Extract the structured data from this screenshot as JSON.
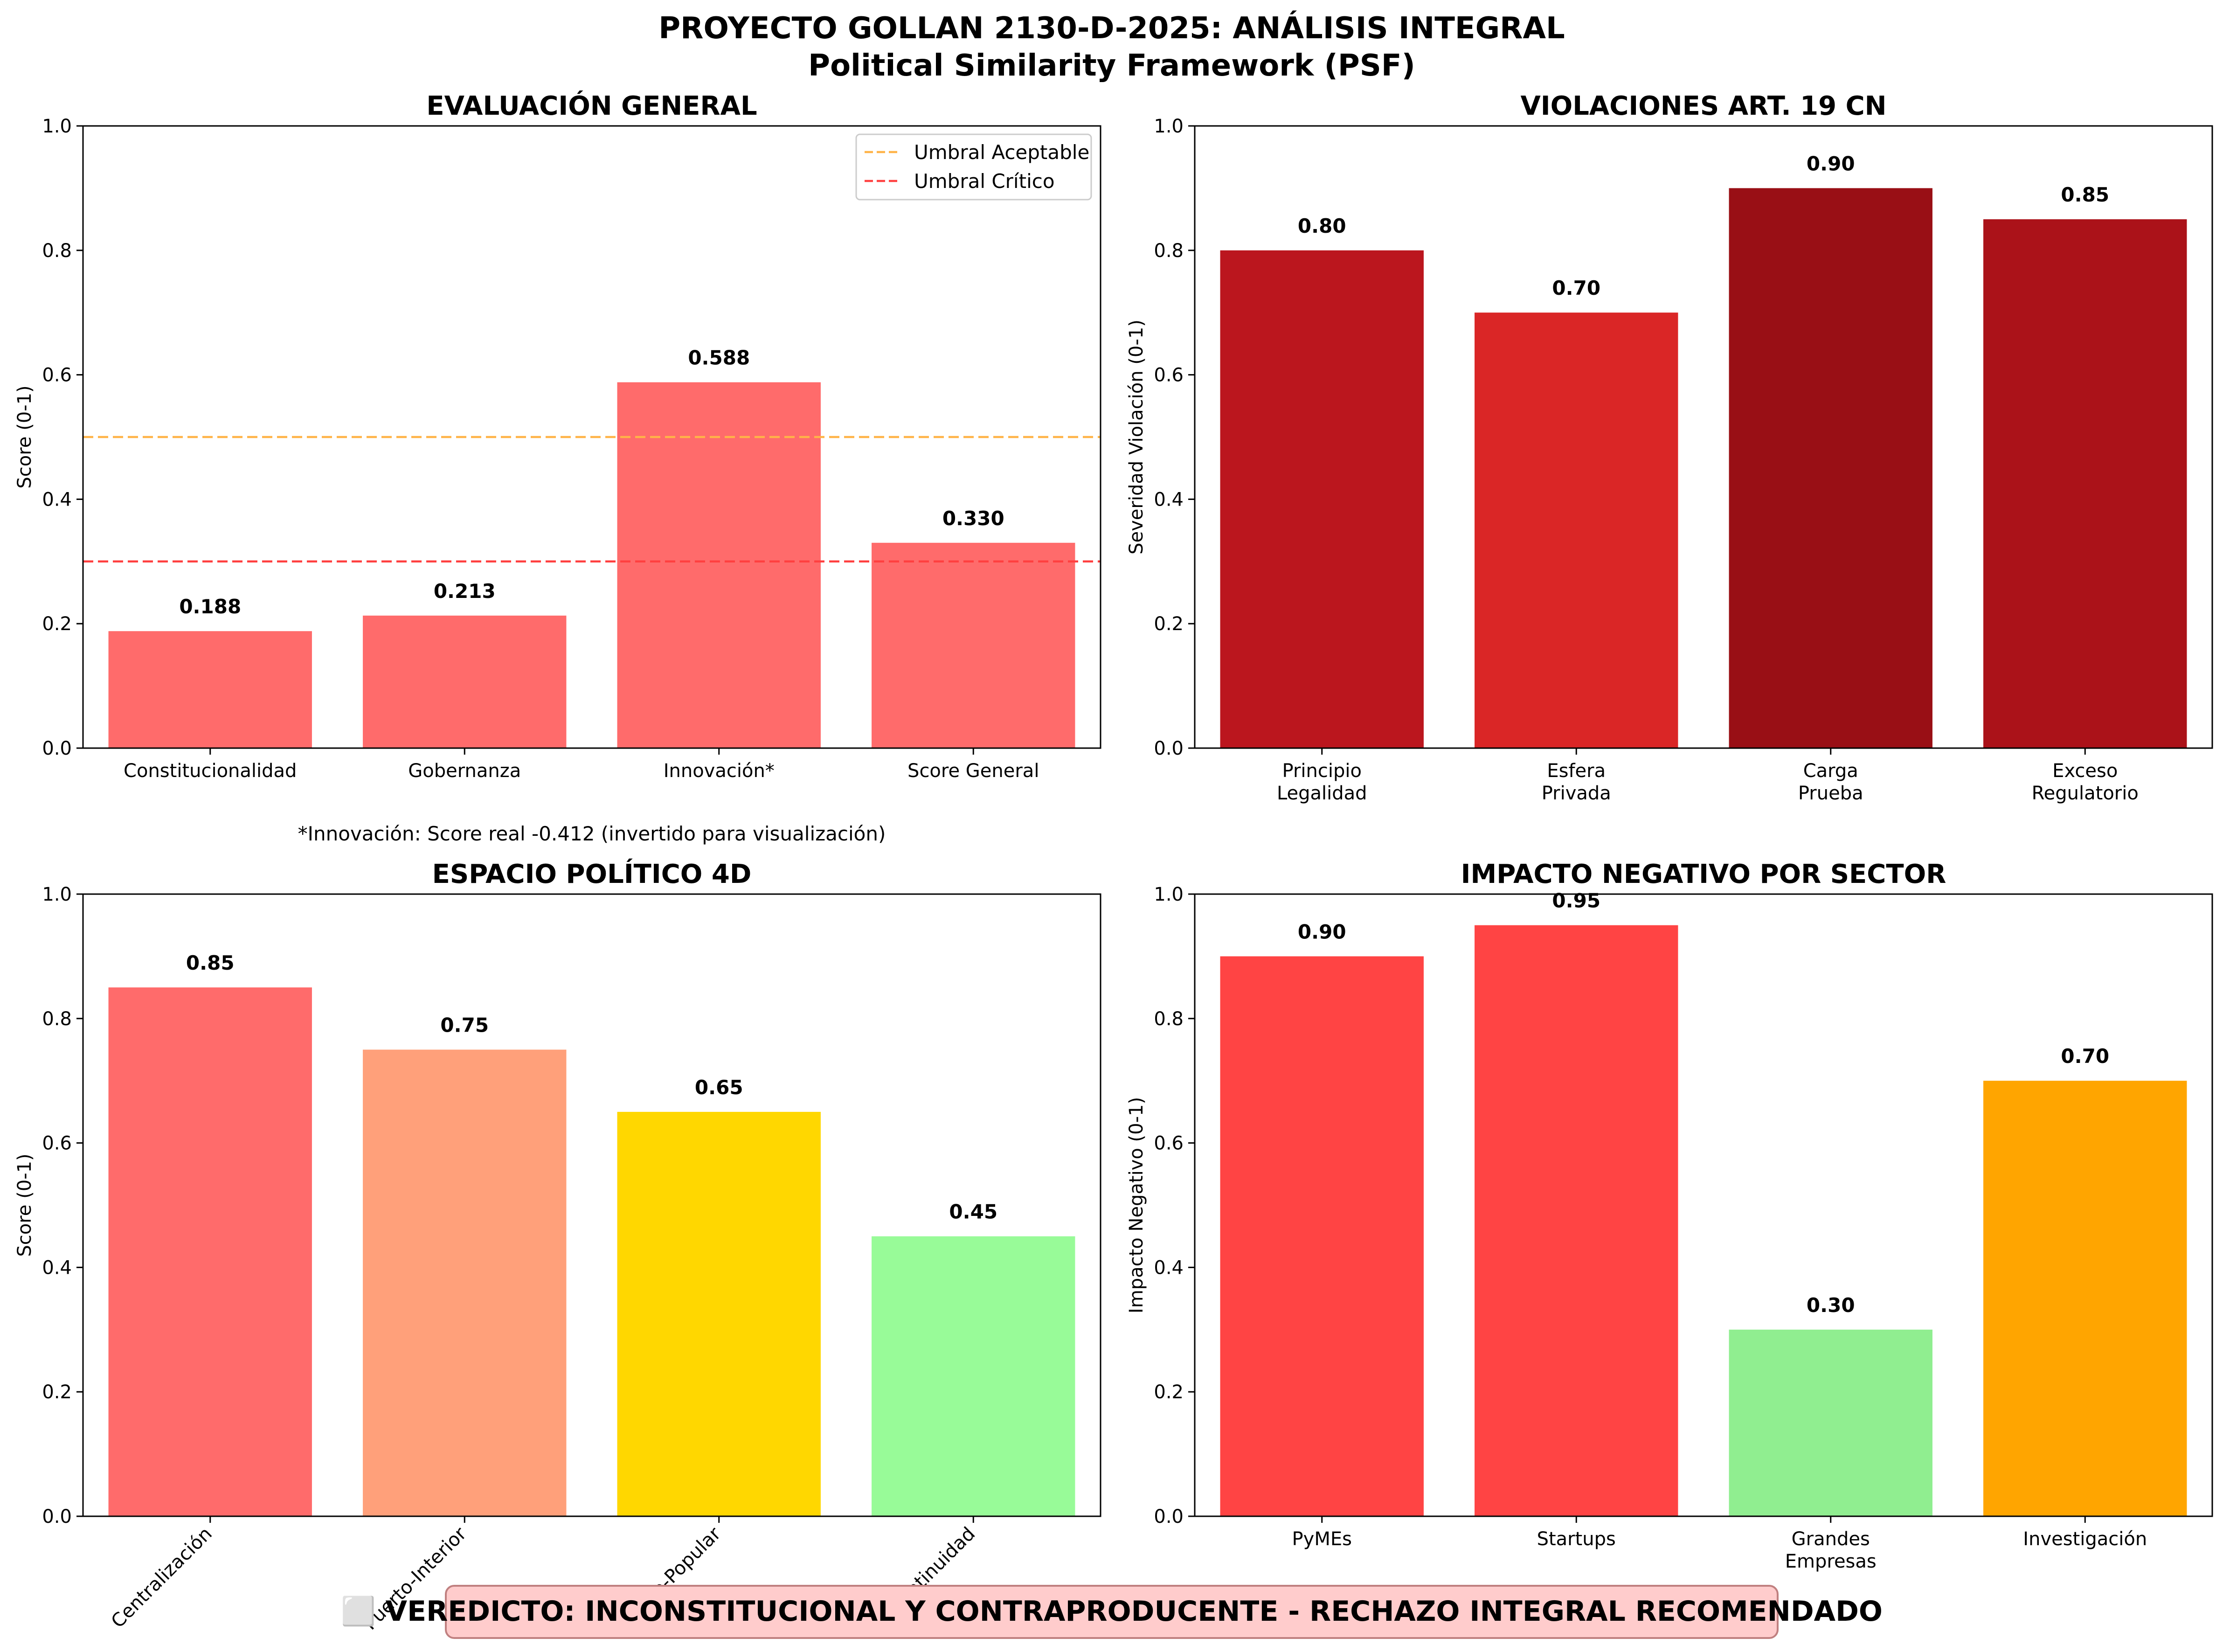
{
  "figure": {
    "title_line1": "PROYECTO GOLLAN 2130-D-2025: ANÁLISIS INTEGRAL",
    "title_line2": "Political Similarity Framework (PSF)",
    "verdict": "⬜ VEREDICTO: INCONSTITUCIONAL Y CONTRAPRODUCENTE - RECHAZO INTEGRAL RECOMENDADO",
    "verdict_bg": "#ffcccc",
    "verdict_border": "#c08080"
  },
  "chart_data": [
    {
      "type": "bar",
      "title": "EVALUACIÓN GENERAL",
      "xlabel": "",
      "ylabel": "Score (0-1)",
      "ylim": [
        0,
        1
      ],
      "yticks": [
        "0.0",
        "0.2",
        "0.4",
        "0.6",
        "0.8",
        "1.0"
      ],
      "categories": [
        "Constitucionalidad",
        "Gobernanza",
        "Innovación*",
        "Score General"
      ],
      "values": [
        0.188,
        0.213,
        0.588,
        0.33
      ],
      "value_labels": [
        "0.188",
        "0.213",
        "0.588",
        "0.330"
      ],
      "colors": [
        "#ff6b6b",
        "#ff6b6b",
        "#ff6b6b",
        "#ff6b6b"
      ],
      "hlines": [
        {
          "y": 0.5,
          "label": "Umbral Aceptable",
          "color": "#ffb347"
        },
        {
          "y": 0.3,
          "label": "Umbral Crítico",
          "color": "#ff4040"
        }
      ],
      "legend": "top-right",
      "footnote": "*Innovación: Score real -0.412 (invertido para visualización)"
    },
    {
      "type": "bar",
      "title": "VIOLACIONES ART. 19 CN",
      "xlabel": "",
      "ylabel": "Severidad Violación (0-1)",
      "ylim": [
        0,
        1
      ],
      "yticks": [
        "0.0",
        "0.2",
        "0.4",
        "0.6",
        "0.8",
        "1.0"
      ],
      "categories": [
        [
          "Principio",
          "Legalidad"
        ],
        [
          "Esfera",
          "Privada"
        ],
        [
          "Carga",
          "Prueba"
        ],
        [
          "Exceso",
          "Regulatorio"
        ]
      ],
      "values": [
        0.8,
        0.7,
        0.9,
        0.85
      ],
      "value_labels": [
        "0.80",
        "0.70",
        "0.90",
        "0.85"
      ],
      "colors": [
        "#bb161e",
        "#da2626",
        "#990f15",
        "#ab1219"
      ]
    },
    {
      "type": "bar",
      "title": "ESPACIO POLÍTICO 4D",
      "xlabel": "",
      "ylabel": "Score (0-1)",
      "ylim": [
        0,
        1
      ],
      "yticks": [
        "0.0",
        "0.2",
        "0.4",
        "0.6",
        "0.8",
        "1.0"
      ],
      "categories": [
        "Centralización",
        "Puerto-Interior",
        "Elite-Popular",
        "Continuidad"
      ],
      "values": [
        0.85,
        0.75,
        0.65,
        0.45
      ],
      "value_labels": [
        "0.85",
        "0.75",
        "0.65",
        "0.45"
      ],
      "colors": [
        "#ff6b6b",
        "#ffa07a",
        "#ffd700",
        "#98fb98"
      ],
      "rotate_ticks": true
    },
    {
      "type": "bar",
      "title": "IMPACTO NEGATIVO POR SECTOR",
      "xlabel": "",
      "ylabel": "Impacto Negativo (0-1)",
      "ylim": [
        0,
        1
      ],
      "yticks": [
        "0.0",
        "0.2",
        "0.4",
        "0.6",
        "0.8",
        "1.0"
      ],
      "categories": [
        [
          "PyMEs"
        ],
        [
          "Startups"
        ],
        [
          "Grandes",
          "Empresas"
        ],
        [
          "Investigación"
        ]
      ],
      "values": [
        0.9,
        0.95,
        0.3,
        0.7
      ],
      "value_labels": [
        "0.90",
        "0.95",
        "0.30",
        "0.70"
      ],
      "colors": [
        "#ff4444",
        "#ff4444",
        "#90ee90",
        "#ffa500"
      ]
    }
  ]
}
